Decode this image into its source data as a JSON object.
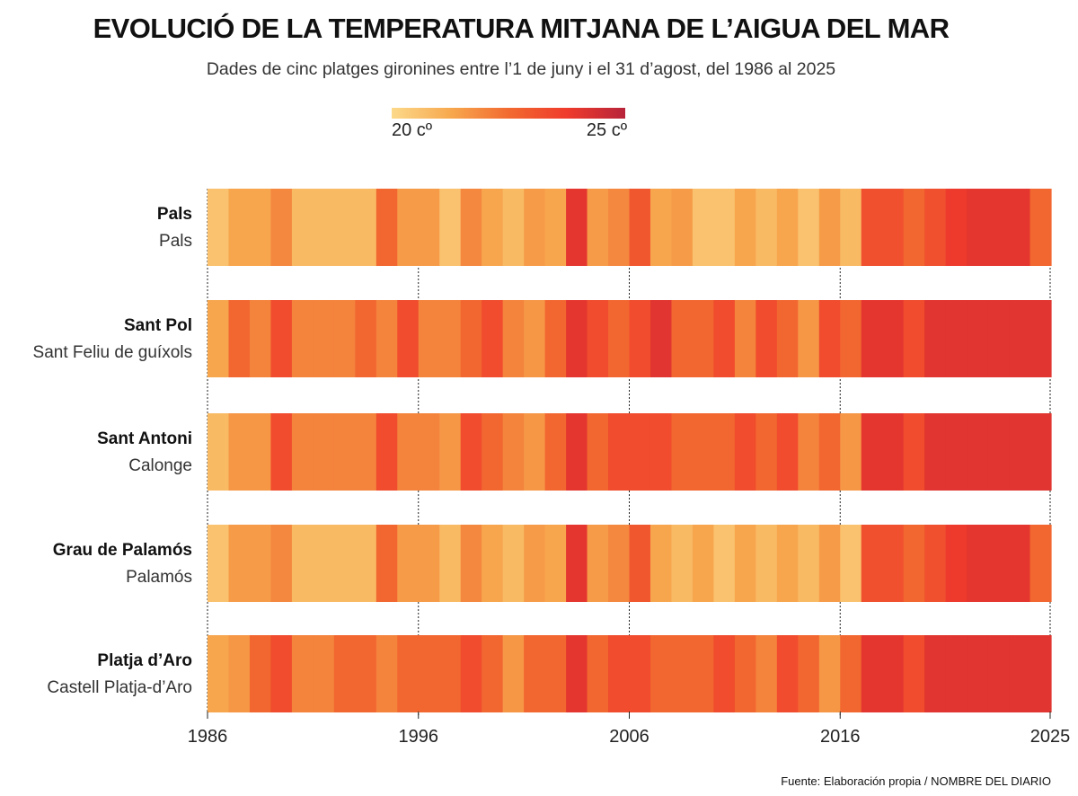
{
  "title": "EVOLUCIÓ DE LA TEMPERATURA MITJANA DE L’AIGUA DEL MAR",
  "subtitle": "Dades de cinc platges gironines entre l’1 de juny i el 31 d’agost, del 1986 al 2025",
  "legend": {
    "min_label": "20 cº",
    "max_label": "25 cº",
    "colors": [
      "#fcd98a",
      "#f7a94f",
      "#f26a30",
      "#ef3b2c",
      "#b8243a"
    ]
  },
  "footer": "Fuente: Elaboración propia / NOMBRE DEL DIARIO",
  "chart_data": {
    "type": "heatmap",
    "title": "EVOLUCIÓ DE LA TEMPERATURA MITJANA DE L’AIGUA DEL MAR",
    "xlabel": "",
    "ylabel": "",
    "value_unit": "°C",
    "color_range": [
      20,
      25
    ],
    "years": [
      1986,
      1987,
      1988,
      1989,
      1990,
      1991,
      1992,
      1993,
      1994,
      1995,
      1996,
      1997,
      1998,
      1999,
      2000,
      2001,
      2002,
      2003,
      2004,
      2005,
      2006,
      2007,
      2008,
      2009,
      2010,
      2011,
      2012,
      2013,
      2014,
      2015,
      2016,
      2017,
      2018,
      2019,
      2020,
      2021,
      2022,
      2023,
      2024,
      2025
    ],
    "x_ticks": [
      "1986",
      "1996",
      "2006",
      "2016",
      "2025"
    ],
    "rows": [
      {
        "name": "Pals",
        "location": "Pals",
        "values": [
          20.6,
          21.3,
          21.3,
          21.9,
          20.8,
          20.8,
          20.8,
          20.8,
          22.6,
          21.5,
          21.5,
          20.6,
          21.9,
          21.3,
          20.8,
          21.5,
          21.3,
          24.0,
          21.5,
          21.9,
          23.0,
          21.3,
          21.5,
          20.6,
          20.6,
          21.3,
          20.8,
          21.3,
          20.6,
          21.5,
          20.8,
          23.2,
          23.2,
          22.6,
          23.2,
          23.8,
          24.0,
          24.0,
          24.0,
          22.6
        ]
      },
      {
        "name": "Sant Pol",
        "location": "Sant Feliu de guíxols",
        "values": [
          21.3,
          22.6,
          22.0,
          23.3,
          22.0,
          22.0,
          22.0,
          22.6,
          22.0,
          23.3,
          22.0,
          22.0,
          22.6,
          23.3,
          22.0,
          21.6,
          22.6,
          24.0,
          23.3,
          22.6,
          23.3,
          24.1,
          22.6,
          22.6,
          23.3,
          22.0,
          23.3,
          22.6,
          21.6,
          23.3,
          22.6,
          24.0,
          24.0,
          23.3,
          24.1,
          24.1,
          24.1,
          24.1,
          24.1,
          24.1
        ]
      },
      {
        "name": "Sant Antoni",
        "location": "Calonge",
        "values": [
          20.8,
          21.6,
          21.6,
          23.3,
          22.0,
          22.0,
          22.0,
          22.0,
          23.3,
          22.0,
          22.0,
          21.6,
          23.3,
          22.6,
          22.0,
          21.6,
          22.6,
          24.0,
          22.6,
          23.3,
          23.3,
          23.3,
          22.6,
          22.6,
          22.6,
          23.3,
          22.6,
          23.3,
          22.0,
          22.6,
          21.6,
          24.0,
          24.0,
          23.3,
          24.1,
          24.1,
          24.1,
          24.1,
          24.1,
          24.1
        ]
      },
      {
        "name": "Grau de Palamós",
        "location": "Palamós",
        "values": [
          20.6,
          21.5,
          21.5,
          21.9,
          20.8,
          20.8,
          20.8,
          20.8,
          22.6,
          21.5,
          21.5,
          20.8,
          21.9,
          21.3,
          20.8,
          21.5,
          21.3,
          24.0,
          21.5,
          21.9,
          23.0,
          21.3,
          20.8,
          21.3,
          20.6,
          21.3,
          20.8,
          21.3,
          20.8,
          21.5,
          20.6,
          23.2,
          23.2,
          22.6,
          23.2,
          23.8,
          24.0,
          24.0,
          24.0,
          22.6
        ]
      },
      {
        "name": "Platja d’Aro",
        "location": "Castell Platja-d’Aro",
        "values": [
          21.3,
          21.6,
          22.6,
          23.3,
          22.0,
          22.0,
          22.6,
          22.6,
          22.0,
          22.6,
          22.6,
          22.6,
          23.3,
          22.6,
          21.6,
          22.6,
          22.6,
          24.0,
          22.6,
          23.3,
          23.3,
          22.6,
          22.6,
          22.6,
          23.3,
          22.6,
          22.0,
          23.3,
          22.6,
          21.6,
          22.6,
          24.0,
          24.0,
          23.3,
          24.1,
          24.1,
          24.1,
          24.1,
          24.1,
          24.1
        ]
      }
    ]
  }
}
